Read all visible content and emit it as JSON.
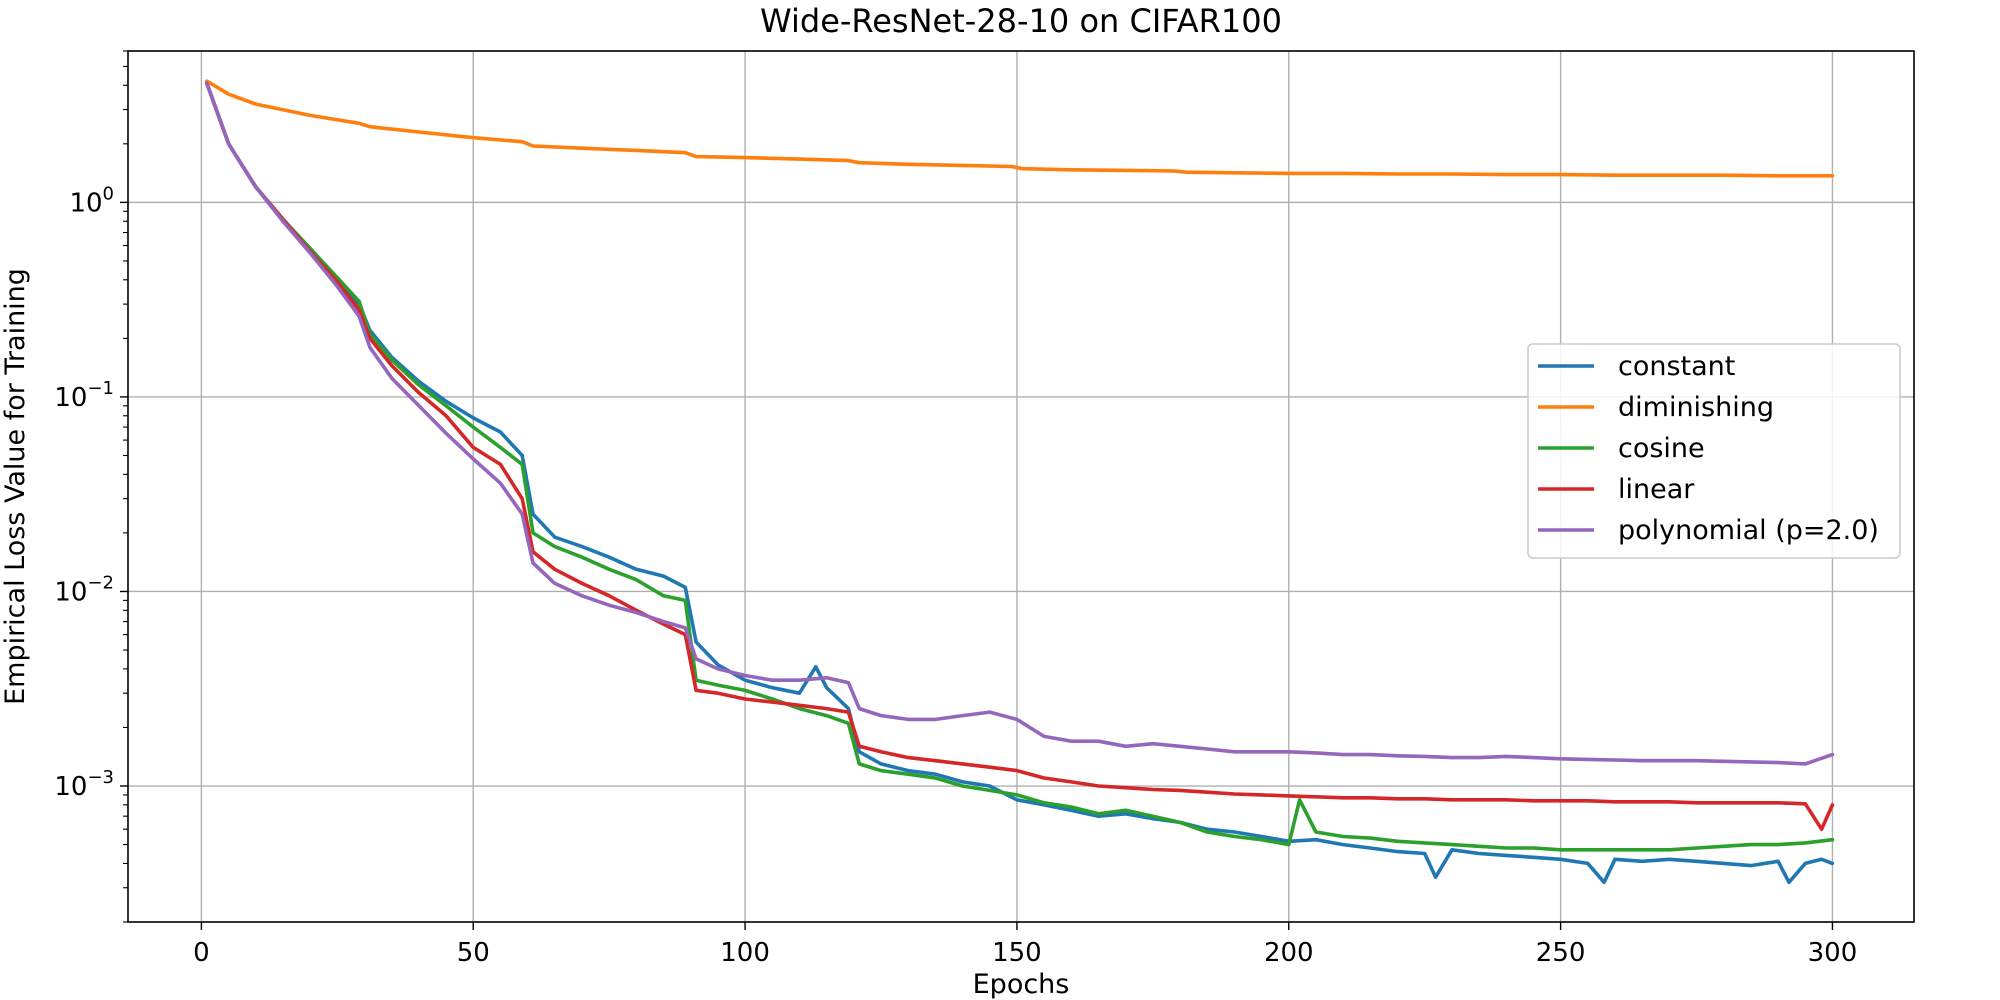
{
  "chart_data": {
    "type": "line",
    "title": "Wide-ResNet-28-10 on CIFAR100",
    "xlabel": "Epochs",
    "ylabel": "Empirical Loss Value for Training",
    "xlim": [
      -13.5,
      315
    ],
    "ylim": [
      0.0002,
      6.0
    ],
    "yscale": "log",
    "grid": true,
    "legend_position": "center-right",
    "x_ticks": [
      0,
      50,
      100,
      150,
      200,
      250,
      300
    ],
    "y_ticks": [
      {
        "value": 1,
        "base": "10",
        "exp": "0"
      },
      {
        "value": 0.1,
        "base": "10",
        "exp": "−1"
      },
      {
        "value": 0.01,
        "base": "10",
        "exp": "−2"
      },
      {
        "value": 0.001,
        "base": "10",
        "exp": "−3"
      }
    ],
    "series": [
      {
        "name": "constant",
        "color": "#1f77b4",
        "x": [
          1,
          5,
          10,
          15,
          20,
          25,
          29,
          31,
          35,
          40,
          45,
          50,
          55,
          59,
          61,
          65,
          70,
          75,
          80,
          85,
          89,
          91,
          95,
          100,
          105,
          110,
          113,
          115,
          119,
          121,
          125,
          130,
          135,
          140,
          145,
          150,
          155,
          160,
          165,
          170,
          175,
          180,
          185,
          190,
          195,
          200,
          205,
          210,
          215,
          220,
          225,
          227,
          230,
          235,
          240,
          245,
          250,
          255,
          258,
          260,
          265,
          270,
          275,
          280,
          285,
          290,
          292,
          295,
          298,
          300
        ],
        "y": [
          4.1,
          2.0,
          1.2,
          0.82,
          0.57,
          0.4,
          0.3,
          0.22,
          0.16,
          0.12,
          0.095,
          0.078,
          0.066,
          0.05,
          0.025,
          0.019,
          0.017,
          0.015,
          0.013,
          0.012,
          0.0105,
          0.0055,
          0.0042,
          0.0035,
          0.0032,
          0.003,
          0.0041,
          0.0032,
          0.0025,
          0.0015,
          0.0013,
          0.0012,
          0.00115,
          0.00105,
          0.001,
          0.00085,
          0.0008,
          0.00075,
          0.0007,
          0.00072,
          0.00068,
          0.00065,
          0.0006,
          0.00058,
          0.00055,
          0.00052,
          0.00053,
          0.0005,
          0.00048,
          0.00046,
          0.00045,
          0.00034,
          0.00047,
          0.00045,
          0.00044,
          0.00043,
          0.00042,
          0.0004,
          0.00032,
          0.00042,
          0.00041,
          0.00042,
          0.00041,
          0.0004,
          0.00039,
          0.00041,
          0.00032,
          0.0004,
          0.00042,
          0.0004
        ]
      },
      {
        "name": "diminishing",
        "color": "#ff7f0e",
        "x": [
          1,
          5,
          10,
          20,
          29,
          31,
          40,
          50,
          59,
          61,
          70,
          80,
          89,
          91,
          100,
          110,
          119,
          121,
          130,
          140,
          149,
          151,
          160,
          170,
          179,
          181,
          190,
          200,
          210,
          220,
          230,
          240,
          250,
          260,
          270,
          280,
          290,
          300
        ],
        "y": [
          4.2,
          3.6,
          3.2,
          2.8,
          2.55,
          2.45,
          2.3,
          2.15,
          2.05,
          1.95,
          1.9,
          1.85,
          1.8,
          1.72,
          1.7,
          1.67,
          1.64,
          1.6,
          1.57,
          1.55,
          1.53,
          1.49,
          1.47,
          1.46,
          1.45,
          1.43,
          1.42,
          1.41,
          1.41,
          1.4,
          1.4,
          1.39,
          1.39,
          1.38,
          1.38,
          1.38,
          1.37,
          1.37
        ]
      },
      {
        "name": "cosine",
        "color": "#2ca02c",
        "x": [
          1,
          5,
          10,
          15,
          20,
          25,
          29,
          31,
          35,
          40,
          45,
          50,
          55,
          59,
          61,
          65,
          70,
          75,
          80,
          85,
          89,
          91,
          95,
          100,
          105,
          110,
          115,
          119,
          121,
          125,
          130,
          135,
          140,
          145,
          150,
          155,
          160,
          165,
          170,
          175,
          180,
          185,
          190,
          195,
          200,
          202,
          205,
          210,
          215,
          220,
          225,
          230,
          235,
          240,
          245,
          250,
          255,
          260,
          265,
          270,
          275,
          280,
          285,
          290,
          295,
          300
        ],
        "y": [
          4.1,
          2.0,
          1.2,
          0.82,
          0.58,
          0.41,
          0.31,
          0.21,
          0.155,
          0.115,
          0.09,
          0.07,
          0.055,
          0.045,
          0.02,
          0.017,
          0.015,
          0.013,
          0.0115,
          0.0095,
          0.009,
          0.0035,
          0.0033,
          0.0031,
          0.0028,
          0.0025,
          0.0023,
          0.0021,
          0.0013,
          0.0012,
          0.00115,
          0.0011,
          0.001,
          0.00095,
          0.0009,
          0.00082,
          0.00078,
          0.00072,
          0.00075,
          0.0007,
          0.00065,
          0.00058,
          0.00055,
          0.00053,
          0.0005,
          0.00085,
          0.00058,
          0.00055,
          0.00054,
          0.00052,
          0.00051,
          0.0005,
          0.00049,
          0.00048,
          0.00048,
          0.00047,
          0.00047,
          0.00047,
          0.00047,
          0.00047,
          0.00048,
          0.00049,
          0.0005,
          0.0005,
          0.00051,
          0.00053
        ]
      },
      {
        "name": "linear",
        "color": "#d62728",
        "x": [
          1,
          5,
          10,
          15,
          20,
          25,
          29,
          31,
          35,
          40,
          45,
          50,
          55,
          59,
          61,
          65,
          70,
          75,
          80,
          85,
          89,
          91,
          95,
          100,
          105,
          110,
          115,
          119,
          121,
          125,
          130,
          135,
          140,
          145,
          150,
          155,
          160,
          165,
          170,
          175,
          180,
          185,
          190,
          195,
          200,
          205,
          210,
          215,
          220,
          225,
          230,
          235,
          240,
          245,
          250,
          255,
          260,
          265,
          270,
          275,
          280,
          285,
          290,
          295,
          298,
          300
        ],
        "y": [
          4.1,
          2.0,
          1.2,
          0.82,
          0.56,
          0.39,
          0.28,
          0.2,
          0.145,
          0.105,
          0.08,
          0.055,
          0.045,
          0.03,
          0.016,
          0.013,
          0.011,
          0.0095,
          0.008,
          0.0068,
          0.006,
          0.0031,
          0.003,
          0.0028,
          0.0027,
          0.0026,
          0.0025,
          0.0024,
          0.0016,
          0.0015,
          0.0014,
          0.00135,
          0.0013,
          0.00125,
          0.0012,
          0.0011,
          0.00105,
          0.001,
          0.00098,
          0.00096,
          0.00095,
          0.00093,
          0.00091,
          0.0009,
          0.00089,
          0.00088,
          0.00087,
          0.00087,
          0.00086,
          0.00086,
          0.00085,
          0.00085,
          0.00085,
          0.00084,
          0.00084,
          0.00084,
          0.00083,
          0.00083,
          0.00083,
          0.00082,
          0.00082,
          0.00082,
          0.00082,
          0.00081,
          0.0006,
          0.0008
        ]
      },
      {
        "name": "polynomial (p=2.0)",
        "color": "#9467bd",
        "x": [
          1,
          5,
          10,
          15,
          20,
          25,
          29,
          31,
          35,
          40,
          45,
          50,
          55,
          59,
          61,
          65,
          70,
          75,
          80,
          85,
          89,
          91,
          95,
          100,
          105,
          110,
          115,
          119,
          121,
          125,
          130,
          135,
          140,
          145,
          150,
          155,
          160,
          165,
          170,
          175,
          180,
          185,
          190,
          195,
          200,
          205,
          210,
          215,
          220,
          225,
          230,
          235,
          240,
          245,
          250,
          255,
          260,
          265,
          270,
          275,
          280,
          285,
          290,
          295,
          300
        ],
        "y": [
          4.1,
          2.0,
          1.2,
          0.8,
          0.55,
          0.37,
          0.26,
          0.18,
          0.125,
          0.09,
          0.065,
          0.048,
          0.036,
          0.025,
          0.014,
          0.011,
          0.0095,
          0.0085,
          0.0078,
          0.007,
          0.0065,
          0.0045,
          0.004,
          0.0037,
          0.0035,
          0.0035,
          0.0036,
          0.0034,
          0.0025,
          0.0023,
          0.0022,
          0.0022,
          0.0023,
          0.0024,
          0.0022,
          0.0018,
          0.0017,
          0.0017,
          0.0016,
          0.00165,
          0.0016,
          0.00155,
          0.0015,
          0.0015,
          0.0015,
          0.00148,
          0.00145,
          0.00145,
          0.00143,
          0.00142,
          0.0014,
          0.0014,
          0.00142,
          0.0014,
          0.00138,
          0.00137,
          0.00136,
          0.00135,
          0.00135,
          0.00135,
          0.00134,
          0.00133,
          0.00132,
          0.0013,
          0.00145
        ]
      }
    ]
  }
}
